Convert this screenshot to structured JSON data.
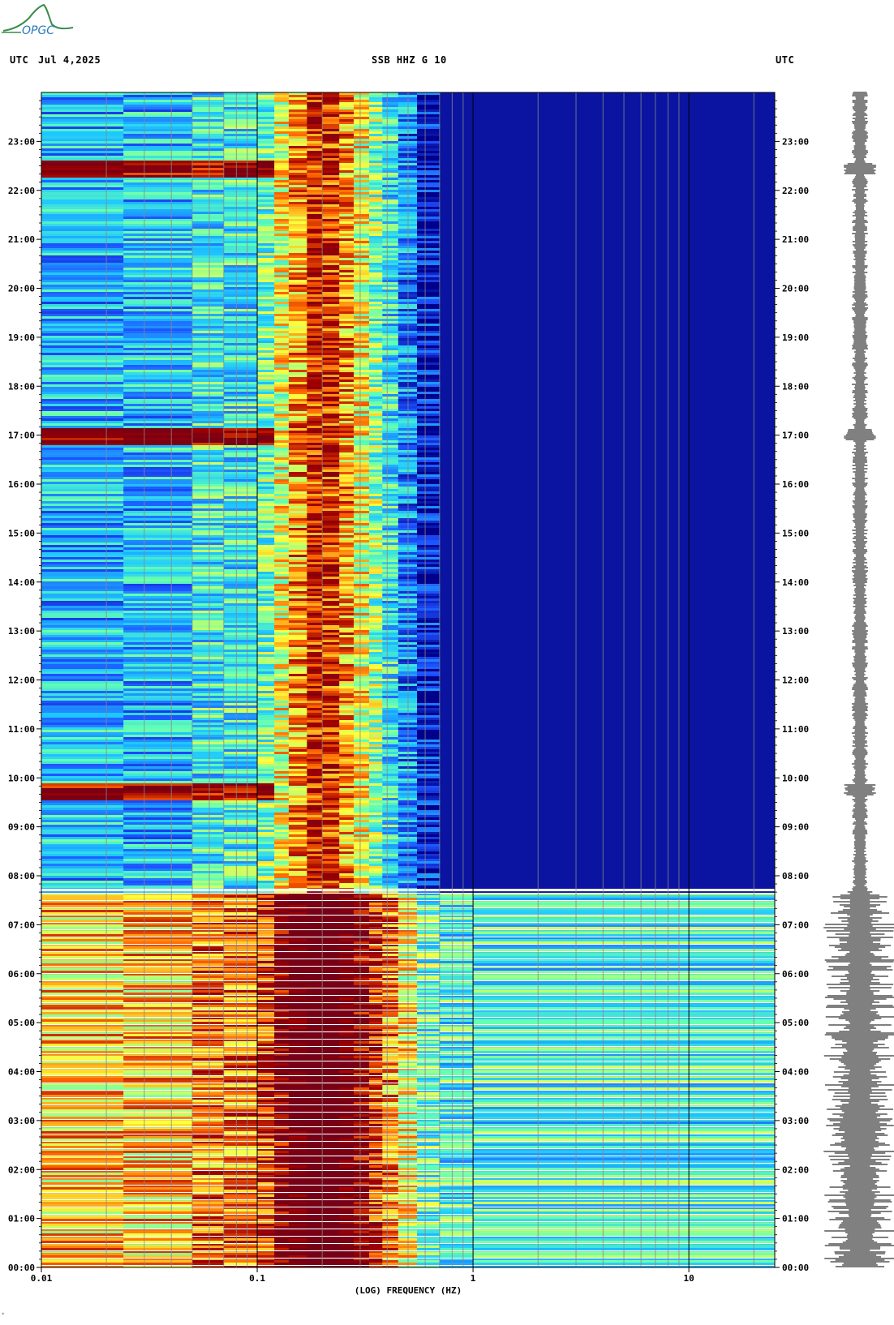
{
  "header": {
    "logo_text": "OPGC",
    "utc_left": "UTC",
    "date": "Jul 4,2025",
    "station": "SSB HHZ G 10",
    "utc_right": "UTC"
  },
  "chart_data": {
    "type": "heatmap",
    "title": "SSB HHZ G 10",
    "date": "Jul 4,2025",
    "xlabel": "(LOG) FREQUENCY (HZ)",
    "x_scale": "log",
    "xlim": [
      0.01,
      25
    ],
    "x_tick_labels": [
      "0.01",
      "0.1",
      "1",
      "10"
    ],
    "x_tick_values": [
      0.01,
      0.1,
      1,
      10
    ],
    "ylabel": "UTC",
    "ylim_hours": [
      0,
      24
    ],
    "y_tick_labels": [
      "00:00",
      "01:00",
      "02:00",
      "03:00",
      "04:00",
      "05:00",
      "06:00",
      "07:00",
      "08:00",
      "09:00",
      "10:00",
      "11:00",
      "12:00",
      "13:00",
      "14:00",
      "15:00",
      "16:00",
      "17:00",
      "18:00",
      "19:00",
      "20:00",
      "21:00",
      "22:00",
      "23:00"
    ],
    "colormap": [
      "#00008b",
      "#1e50ff",
      "#1ec8ff",
      "#64ffb4",
      "#ffff3c",
      "#ff6400",
      "#a00000",
      "#780014"
    ],
    "background_color": "#0a14a0",
    "microseism_peak_hz": 0.2,
    "gap_after_hour": 7.7,
    "events": [
      {
        "time_hours": 22.45,
        "label": ""
      },
      {
        "time_hours": 17.0,
        "label": ""
      },
      {
        "time_hours": 9.75,
        "label": ""
      }
    ],
    "grid": true,
    "seismogram_panel": true
  },
  "footer": {
    "mark": "*"
  }
}
